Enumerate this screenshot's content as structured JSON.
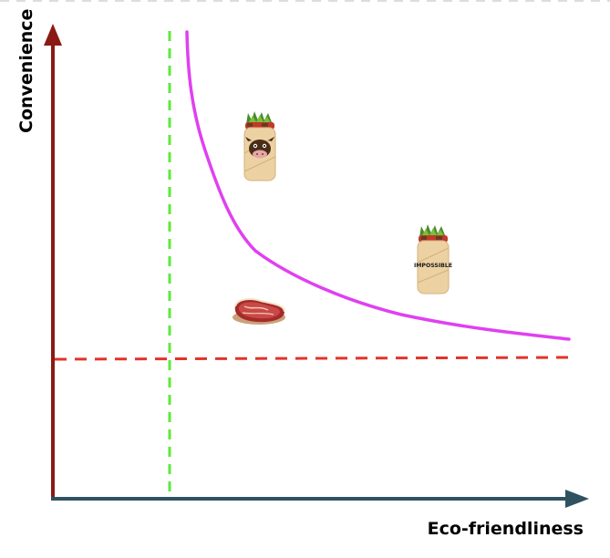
{
  "diagram": {
    "x_axis_label": "Eco-friendliness",
    "y_axis_label": "Convenience",
    "items": [
      {
        "name": "beef-burrito",
        "icon": "burrito-cow-icon"
      },
      {
        "name": "impossible-burrito",
        "icon": "burrito-impossible-icon",
        "wrapper_text": "IMPOSSIBLE"
      },
      {
        "name": "steak",
        "icon": "steak-icon"
      }
    ],
    "colors": {
      "y_axis": "#8b1a14",
      "x_axis": "#2f5260",
      "tradeoff_curve": "#e040f0",
      "vertical_threshold": "#5ee83a",
      "horizontal_threshold": "#e2332a",
      "top_border": "#dddddd"
    }
  }
}
